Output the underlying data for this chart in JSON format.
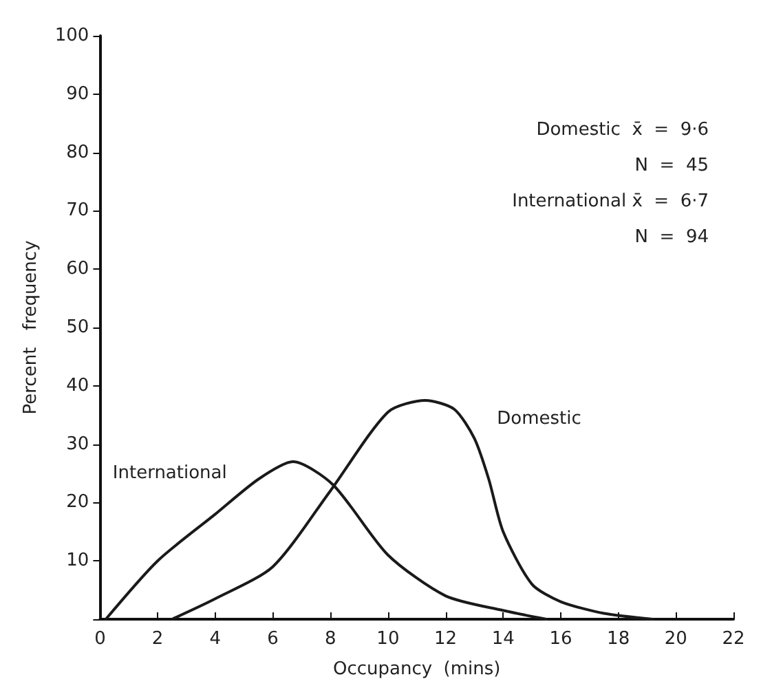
{
  "chart_data": {
    "type": "line",
    "xlabel": "Occupancy  (mins)",
    "ylabel": "Percent   frequency",
    "xlim": [
      0,
      22
    ],
    "xticks": [
      0,
      2,
      4,
      6,
      8,
      10,
      12,
      14,
      16,
      18,
      20,
      22
    ],
    "ylim": [
      0,
      100
    ],
    "yticks": [
      {
        "value": 0,
        "label": null
      },
      10,
      20,
      30,
      40,
      50,
      60,
      70,
      80,
      90,
      100
    ],
    "grid": false,
    "legend": false,
    "marker": "none",
    "line_style": "solid",
    "series": [
      {
        "name": "International",
        "color": "#1a1a1a",
        "x": [
          0.2,
          2,
          4,
          5.5,
          6.7,
          8.1,
          10,
          12,
          14,
          15.5
        ],
        "values": [
          0,
          10,
          18,
          24,
          27,
          23,
          11,
          4,
          1.5,
          0
        ]
      },
      {
        "name": "Domestic",
        "color": "#1a1a1a",
        "x": [
          2.5,
          4,
          6,
          8,
          10,
          11.3,
          12.3,
          13,
          13.5,
          14,
          15,
          16,
          17.5,
          19.2
        ],
        "values": [
          0,
          3.5,
          9,
          22,
          35.5,
          37.5,
          36,
          31,
          24,
          15,
          6,
          3,
          1,
          0
        ]
      }
    ],
    "annotations": [
      "Domestic  x̄  =  9·6",
      "N  =  45",
      "International x̄  =  6·7",
      "N  =  94"
    ]
  }
}
